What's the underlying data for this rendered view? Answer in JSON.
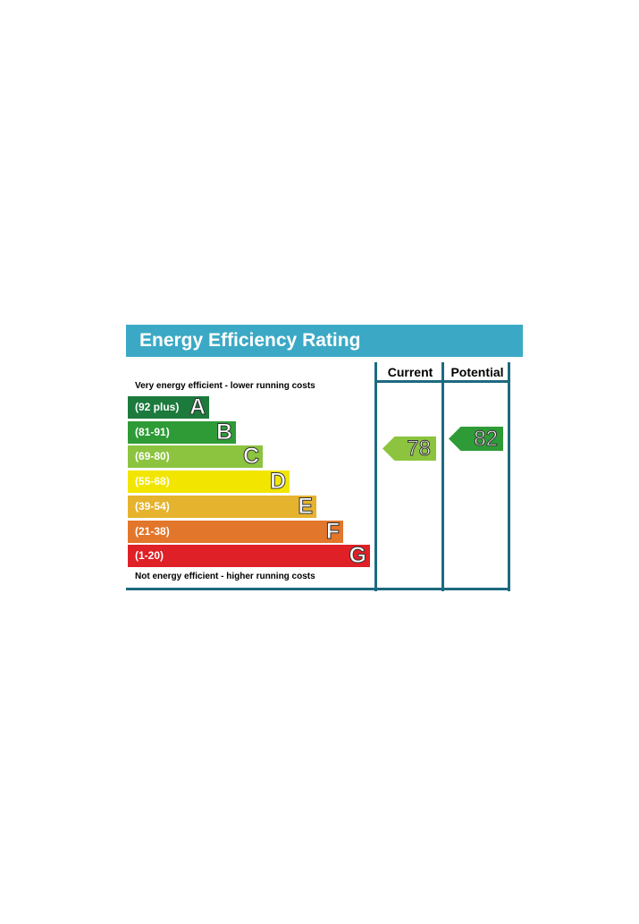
{
  "chart_data": {
    "type": "bar",
    "title": "Energy Efficiency Rating",
    "columns": [
      "Current",
      "Potential"
    ],
    "top_note": "Very energy efficient - lower running costs",
    "bottom_note": "Not energy efficient - higher running costs",
    "bands": [
      {
        "letter": "A",
        "range": "(92 plus)",
        "color": "#1b7a3c",
        "min": 92,
        "max": 100
      },
      {
        "letter": "B",
        "range": "(81-91)",
        "color": "#2e9b37",
        "min": 81,
        "max": 91
      },
      {
        "letter": "C",
        "range": "(69-80)",
        "color": "#8cc43f",
        "min": 69,
        "max": 80
      },
      {
        "letter": "D",
        "range": "(55-68)",
        "color": "#f2e600",
        "min": 55,
        "max": 68
      },
      {
        "letter": "E",
        "range": "(39-54)",
        "color": "#e6b32e",
        "min": 39,
        "max": 54
      },
      {
        "letter": "F",
        "range": "(21-38)",
        "color": "#e2762b",
        "min": 21,
        "max": 38
      },
      {
        "letter": "G",
        "range": "(1-20)",
        "color": "#df2027",
        "min": 1,
        "max": 20
      }
    ],
    "current": {
      "value": 78,
      "band": "C",
      "color": "#8cc43f"
    },
    "potential": {
      "value": 82,
      "band": "B",
      "color": "#2e9b37"
    },
    "header_color": "#3ba9c5",
    "frame_color": "#1d6a80"
  }
}
